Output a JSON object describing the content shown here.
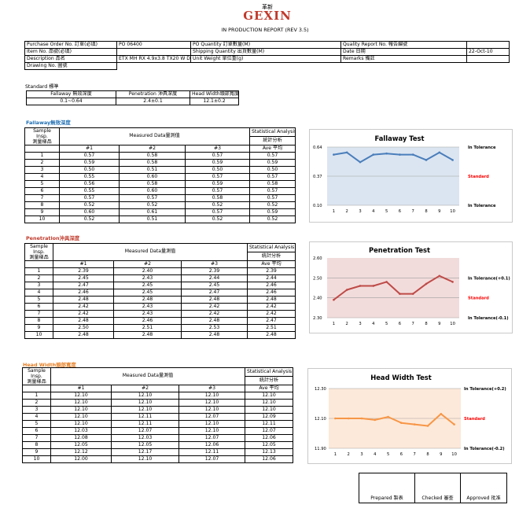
{
  "header": {
    "logo_top": "革新",
    "logo_main": "GEXIN",
    "report_title": "IN PRODUCTION REPORT (REV 3.5)"
  },
  "info": {
    "po_label": "Purchase Order No. 訂單(必填)",
    "po_value": "PO 06400",
    "po_qty_label": "PO Quantity 訂單數量(M)",
    "po_qty_value": "",
    "qr_label": "Quality Report No. 報告編號",
    "qr_value": "",
    "item_label": "Item No. 品號(必填)",
    "item_value": "",
    "ship_label": "Shipping Quantity 出貨數量(M)",
    "ship_value": "",
    "date_label": "Date 日期",
    "date_value": "22-Oct-10",
    "desc_label": "Description 品名",
    "desc_value": "ETX MH RX 4.9x3.8 TX20 W DC",
    "unitw_label": "Unit Weight 單位重(g)",
    "unitw_value": "",
    "remarks_label": "Remarks 備註",
    "remarks_value": "",
    "drawing_label": "Drawing No. 圖號",
    "drawing_value": ""
  },
  "standard": {
    "label": "Standard 標準",
    "headers": [
      "Fallaway 無效深度",
      "Penetration 沖具深度",
      "Head Width頭部寬度"
    ],
    "values": [
      "0.1~0.64",
      "2.4±0.1",
      "12.1±0.2"
    ]
  },
  "common": {
    "sample_label_1": "Sample Insp.",
    "sample_label_2": "測量樣品",
    "measured_label": "Measured Data量測值",
    "stat_label_1": "Statistical Analysis",
    "stat_label_2": "統計分析",
    "col1": "#1",
    "col2": "#2",
    "col3": "#3",
    "ave_label": "Ave 平均"
  },
  "fallaway": {
    "section_title": "Fallaway無效深度",
    "color": "#1f6fb4",
    "rows": [
      [
        "1",
        "0.57",
        "0.58",
        "0.57",
        "0.57"
      ],
      [
        "2",
        "0.59",
        "0.58",
        "0.59",
        "0.59"
      ],
      [
        "3",
        "0.50",
        "0.51",
        "0.50",
        "0.50"
      ],
      [
        "4",
        "0.55",
        "0.60",
        "0.57",
        "0.57"
      ],
      [
        "5",
        "0.56",
        "0.58",
        "0.59",
        "0.58"
      ],
      [
        "6",
        "0.55",
        "0.60",
        "0.57",
        "0.57"
      ],
      [
        "7",
        "0.57",
        "0.57",
        "0.58",
        "0.57"
      ],
      [
        "8",
        "0.52",
        "0.52",
        "0.52",
        "0.52"
      ],
      [
        "9",
        "0.60",
        "0.61",
        "0.57",
        "0.59"
      ],
      [
        "10",
        "0.52",
        "0.51",
        "0.52",
        "0.52"
      ]
    ]
  },
  "penetration": {
    "section_title": "Penetration沖具深度",
    "color": "#c0392b",
    "rows": [
      [
        "1",
        "2.39",
        "2.40",
        "2.39",
        "2.39"
      ],
      [
        "2",
        "2.45",
        "2.43",
        "2.44",
        "2.44"
      ],
      [
        "3",
        "2.47",
        "2.45",
        "2.45",
        "2.46"
      ],
      [
        "4",
        "2.46",
        "2.45",
        "2.47",
        "2.46"
      ],
      [
        "5",
        "2.48",
        "2.48",
        "2.48",
        "2.48"
      ],
      [
        "6",
        "2.42",
        "2.43",
        "2.42",
        "2.42"
      ],
      [
        "7",
        "2.42",
        "2.43",
        "2.42",
        "2.42"
      ],
      [
        "8",
        "2.48",
        "2.46",
        "2.48",
        "2.47"
      ],
      [
        "9",
        "2.50",
        "2.51",
        "2.53",
        "2.51"
      ],
      [
        "10",
        "2.48",
        "2.48",
        "2.48",
        "2.48"
      ]
    ]
  },
  "headwidth": {
    "section_title": "Head Width頭部寬度",
    "color": "#e67e22",
    "rows": [
      [
        "1",
        "12.10",
        "12.10",
        "12.10",
        "12.10"
      ],
      [
        "2",
        "12.10",
        "12.10",
        "12.10",
        "12.10"
      ],
      [
        "3",
        "12.10",
        "12.10",
        "12.10",
        "12.10"
      ],
      [
        "4",
        "12.10",
        "12.11",
        "12.07",
        "12.09"
      ],
      [
        "5",
        "12.10",
        "12.11",
        "12.10",
        "12.11"
      ],
      [
        "6",
        "12.03",
        "12.07",
        "12.10",
        "12.07"
      ],
      [
        "7",
        "12.08",
        "12.03",
        "12.07",
        "12.06"
      ],
      [
        "8",
        "12.05",
        "12.05",
        "12.06",
        "12.05"
      ],
      [
        "9",
        "12.12",
        "12.17",
        "12.11",
        "12.13"
      ],
      [
        "10",
        "12.00",
        "12.10",
        "12.07",
        "12.06"
      ]
    ]
  },
  "chart_data": [
    {
      "type": "line",
      "title": "Fallaway Test",
      "categories": [
        "1",
        "2",
        "3",
        "4",
        "5",
        "6",
        "7",
        "8",
        "9",
        "10"
      ],
      "y_ticks": [
        "0.64",
        "0.37",
        "0.10"
      ],
      "ylim": [
        0.1,
        0.64
      ],
      "series": [
        {
          "values": [
            0.57,
            0.59,
            0.5,
            0.57,
            0.58,
            0.57,
            0.57,
            0.52,
            0.59,
            0.52
          ]
        }
      ],
      "reference_lines": [
        {
          "label": "In Tolerance",
          "value": 0.64,
          "color": "#000000"
        },
        {
          "label": "Standard",
          "value": 0.37,
          "color": "#ff0000"
        },
        {
          "label": "In Tolerance",
          "value": 0.1,
          "color": "#000000"
        }
      ],
      "line_color": "#4a7ebb",
      "plot_bg": "#dbe5f1",
      "grid": false
    },
    {
      "type": "line",
      "title": "Penetration Test",
      "categories": [
        "1",
        "2",
        "3",
        "4",
        "5",
        "6",
        "7",
        "8",
        "9",
        "10"
      ],
      "y_ticks": [
        "2.60",
        "2.50",
        "2.40",
        "2.30"
      ],
      "ylim": [
        2.3,
        2.6
      ],
      "series": [
        {
          "values": [
            2.39,
            2.44,
            2.46,
            2.46,
            2.48,
            2.42,
            2.42,
            2.47,
            2.51,
            2.48
          ]
        }
      ],
      "reference_lines": [
        {
          "label": "In Tolerance(+0.1)",
          "value": 2.5,
          "color": "#000000"
        },
        {
          "label": "Standard",
          "value": 2.4,
          "color": "#ff0000"
        },
        {
          "label": "In Tolerance(-0.1)",
          "value": 2.3,
          "color": "#000000"
        }
      ],
      "line_color": "#be4b48",
      "plot_bg": "#f2dcdb",
      "grid": false
    },
    {
      "type": "line",
      "title": "Head Width Test",
      "categories": [
        "1",
        "2",
        "3",
        "4",
        "5",
        "6",
        "7",
        "8",
        "9",
        "10"
      ],
      "y_ticks": [
        "12.30",
        "12.10",
        "11.90"
      ],
      "ylim": [
        11.9,
        12.3
      ],
      "series": [
        {
          "values": [
            12.1,
            12.1,
            12.1,
            12.09,
            12.11,
            12.07,
            12.06,
            12.05,
            12.13,
            12.06
          ]
        }
      ],
      "reference_lines": [
        {
          "label": "In Tolerance(+0.2)",
          "value": 12.3,
          "color": "#000000"
        },
        {
          "label": "Standard",
          "value": 12.1,
          "color": "#ff0000"
        },
        {
          "label": "In Tolerance(-0.2)",
          "value": 11.9,
          "color": "#000000"
        }
      ],
      "line_color": "#f79646",
      "plot_bg": "#fde9d9",
      "grid": false
    }
  ],
  "signatures": {
    "prepared": "Prepared 製表",
    "checked": "Checked 審查",
    "approved": "Approved 批准"
  }
}
